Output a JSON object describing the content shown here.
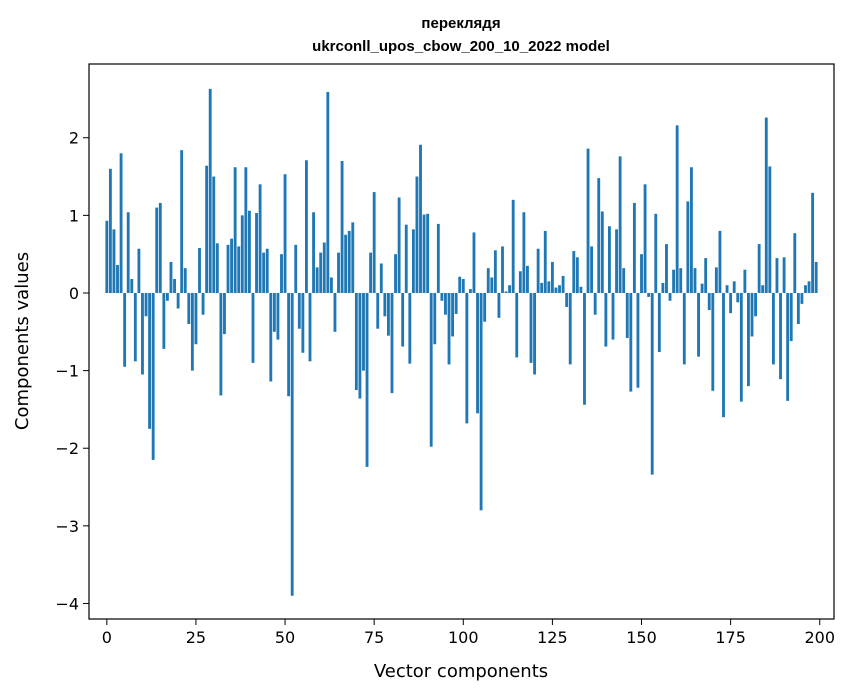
{
  "chart_data": {
    "type": "bar",
    "title": "переклядя",
    "subtitle": "ukrconll_upos_cbow_200_10_2022 model",
    "xlabel": "Vector components",
    "ylabel": "Components values",
    "xlim": [
      -5,
      204
    ],
    "ylim": [
      -4.2,
      2.95
    ],
    "xticks": [
      0,
      25,
      50,
      75,
      100,
      125,
      150,
      175,
      200
    ],
    "xtick_labels": [
      "0",
      "25",
      "50",
      "75",
      "100",
      "125",
      "150",
      "175",
      "200"
    ],
    "yticks": [
      2,
      1,
      0,
      -1,
      -2,
      -3,
      -4
    ],
    "ytick_labels": [
      "2",
      "1",
      "0",
      "−1",
      "−2",
      "−3",
      "−4"
    ],
    "grid": false,
    "bar_color": "#1f77b4",
    "values": [
      0.93,
      1.6,
      0.82,
      0.36,
      1.8,
      -0.95,
      1.04,
      0.18,
      -0.88,
      0.57,
      -1.05,
      -0.3,
      -1.75,
      -2.15,
      1.1,
      1.16,
      -0.72,
      -0.1,
      0.4,
      0.18,
      -0.2,
      1.84,
      0.32,
      -0.4,
      -1.0,
      -0.66,
      0.58,
      -0.28,
      1.64,
      2.63,
      1.5,
      0.64,
      -1.32,
      -0.53,
      0.62,
      0.7,
      1.62,
      0.6,
      1.0,
      1.62,
      1.06,
      -0.9,
      1.03,
      1.4,
      0.52,
      0.57,
      -1.14,
      -0.5,
      -0.6,
      0.5,
      1.53,
      -1.33,
      -3.9,
      0.62,
      -0.46,
      -0.77,
      1.71,
      -0.88,
      1.04,
      0.33,
      0.52,
      0.65,
      2.59,
      0.2,
      -0.5,
      0.52,
      1.7,
      0.75,
      0.8,
      0.91,
      -1.25,
      -1.36,
      -1.0,
      -2.24,
      0.52,
      1.3,
      -0.46,
      0.38,
      -0.3,
      -0.55,
      -1.29,
      0.5,
      1.23,
      -0.69,
      0.88,
      -0.91,
      0.82,
      1.5,
      1.91,
      1.01,
      1.02,
      -1.98,
      -0.66,
      0.89,
      -0.1,
      -0.28,
      -0.92,
      -0.56,
      -0.27,
      0.21,
      0.18,
      -1.68,
      0.05,
      0.78,
      -1.55,
      -2.8,
      -0.37,
      0.32,
      0.2,
      0.55,
      -0.32,
      0.6,
      0.02,
      0.1,
      1.2,
      -0.83,
      0.28,
      1.04,
      0.35,
      -0.9,
      -1.05,
      0.57,
      0.13,
      0.8,
      0.15,
      0.4,
      0.07,
      0.1,
      0.22,
      -0.18,
      -0.92,
      0.54,
      0.46,
      0.08,
      -1.44,
      1.86,
      0.6,
      -0.28,
      1.48,
      1.05,
      -0.69,
      0.86,
      -0.6,
      0.82,
      1.76,
      0.32,
      -0.58,
      -1.27,
      1.16,
      -1.22,
      0.5,
      1.4,
      -0.05,
      -2.34,
      1.02,
      -0.76,
      0.13,
      0.63,
      -0.1,
      0.3,
      2.16,
      0.32,
      -0.92,
      1.18,
      1.62,
      0.32,
      -0.82,
      0.12,
      0.45,
      -0.22,
      -1.26,
      0.33,
      0.8,
      -1.6,
      0.1,
      -0.26,
      0.15,
      -0.12,
      -1.4,
      0.3,
      -1.2,
      -0.56,
      -0.3,
      0.63,
      0.1,
      2.26,
      1.63,
      -0.92,
      0.45,
      -1.11,
      0.46,
      -1.39,
      -0.62,
      0.77,
      -0.4,
      -0.14,
      0.1,
      0.15,
      1.29,
      0.4
    ]
  }
}
